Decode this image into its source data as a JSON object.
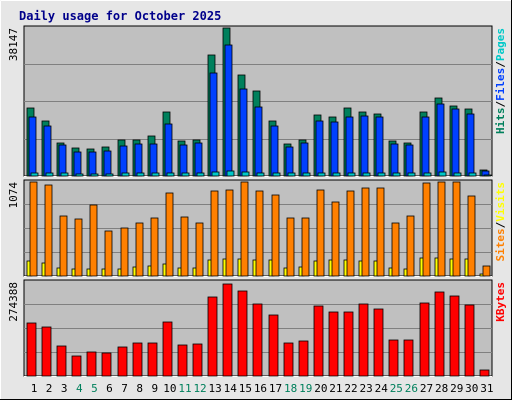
{
  "chart_data": [
    {
      "type": "bar",
      "title": "Daily usage for October 2025",
      "ymax_label": "38147",
      "ylim": [
        0,
        38147
      ],
      "grid": true,
      "legend_parts": [
        {
          "text": "Hits",
          "color": "#00805c"
        },
        {
          "text": "/",
          "color": "#000000"
        },
        {
          "text": "Files",
          "color": "#0040ff"
        },
        {
          "text": "/",
          "color": "#000000"
        },
        {
          "text": "Pages",
          "color": "#00c8c8"
        }
      ],
      "series": [
        {
          "name": "Hits",
          "color": "#00805c",
          "values": [
            17600,
            14200,
            8600,
            7200,
            6900,
            7400,
            9300,
            9300,
            10200,
            16600,
            8900,
            9300,
            31200,
            38147,
            26000,
            21800,
            14300,
            8200,
            9300,
            15600,
            15100,
            17600,
            16600,
            16000,
            9000,
            8600,
            16600,
            20000,
            18000,
            17300,
            1600
          ]
        },
        {
          "name": "Files",
          "color": "#0040ff",
          "values": [
            15300,
            12900,
            7900,
            6300,
            6300,
            6400,
            7700,
            8300,
            8200,
            13300,
            7900,
            8400,
            26500,
            33700,
            22300,
            17800,
            13000,
            7400,
            8500,
            14200,
            14000,
            15300,
            15500,
            15200,
            8300,
            7900,
            15300,
            18600,
            17200,
            16100,
            1400
          ]
        },
        {
          "name": "Pages",
          "color": "#00c8c8",
          "values": [
            900,
            800,
            700,
            600,
            600,
            600,
            700,
            700,
            700,
            800,
            700,
            700,
            1100,
            1300,
            1000,
            900,
            800,
            700,
            700,
            900,
            900,
            900,
            900,
            900,
            700,
            700,
            900,
            1000,
            900,
            900,
            200
          ]
        }
      ]
    },
    {
      "type": "bar",
      "ymax_label": "1074",
      "ylim": [
        0,
        1074
      ],
      "grid": true,
      "legend_parts": [
        {
          "text": "Sites",
          "color": "#ff8000"
        },
        {
          "text": "/",
          "color": "#000000"
        },
        {
          "text": "Visits",
          "color": "#ffff00"
        }
      ],
      "series": [
        {
          "name": "Visits",
          "color": "#ffff00",
          "values": [
            170,
            150,
            95,
            80,
            80,
            80,
            85,
            100,
            110,
            140,
            95,
            95,
            185,
            195,
            195,
            185,
            180,
            95,
            100,
            170,
            180,
            180,
            170,
            170,
            95,
            85,
            200,
            205,
            195,
            195,
            20
          ]
        },
        {
          "name": "Sites",
          "color": "#ff8000",
          "values": [
            1074,
            1040,
            690,
            650,
            810,
            510,
            550,
            600,
            660,
            950,
            670,
            600,
            970,
            980,
            1074,
            970,
            920,
            660,
            660,
            985,
            850,
            970,
            1000,
            1000,
            610,
            680,
            1060,
            1074,
            1074,
            910,
            110
          ]
        }
      ]
    },
    {
      "type": "bar",
      "ymax_label": "274388",
      "ylim": [
        0,
        274388
      ],
      "grid": true,
      "legend_parts": [
        {
          "text": "KBytes",
          "color": "#ff0000"
        }
      ],
      "series": [
        {
          "name": "KBytes",
          "color": "#ff0000",
          "values": [
            154000,
            144000,
            89000,
            58000,
            71000,
            67000,
            85000,
            97000,
            97000,
            159000,
            91000,
            94000,
            230000,
            268000,
            248000,
            210000,
            179000,
            95000,
            103000,
            204000,
            186000,
            186000,
            211000,
            195000,
            104000,
            104000,
            214000,
            245000,
            233000,
            208000,
            18000
          ]
        }
      ]
    }
  ],
  "x_labels": [
    {
      "text": "1",
      "weekend": false
    },
    {
      "text": "2",
      "weekend": false
    },
    {
      "text": "3",
      "weekend": false
    },
    {
      "text": "4",
      "weekend": true
    },
    {
      "text": "5",
      "weekend": true
    },
    {
      "text": "6",
      "weekend": false
    },
    {
      "text": "7",
      "weekend": false
    },
    {
      "text": "8",
      "weekend": false
    },
    {
      "text": "9",
      "weekend": false
    },
    {
      "text": "10",
      "weekend": false
    },
    {
      "text": "11",
      "weekend": true
    },
    {
      "text": "12",
      "weekend": true
    },
    {
      "text": "13",
      "weekend": false
    },
    {
      "text": "14",
      "weekend": false
    },
    {
      "text": "15",
      "weekend": false
    },
    {
      "text": "16",
      "weekend": false
    },
    {
      "text": "17",
      "weekend": false
    },
    {
      "text": "18",
      "weekend": true
    },
    {
      "text": "19",
      "weekend": true
    },
    {
      "text": "20",
      "weekend": false
    },
    {
      "text": "21",
      "weekend": false
    },
    {
      "text": "22",
      "weekend": false
    },
    {
      "text": "23",
      "weekend": false
    },
    {
      "text": "24",
      "weekend": false
    },
    {
      "text": "25",
      "weekend": true
    },
    {
      "text": "26",
      "weekend": true
    },
    {
      "text": "27",
      "weekend": false
    },
    {
      "text": "28",
      "weekend": false
    },
    {
      "text": "29",
      "weekend": false
    },
    {
      "text": "30",
      "weekend": false
    },
    {
      "text": "31",
      "weekend": false
    }
  ],
  "colors": {
    "background": "#e6e6e6",
    "plot": "#c0c0c0",
    "grid": "#808080",
    "title": "#00008b",
    "weekday_label": "#000000",
    "weekend_label": "#00805c"
  }
}
